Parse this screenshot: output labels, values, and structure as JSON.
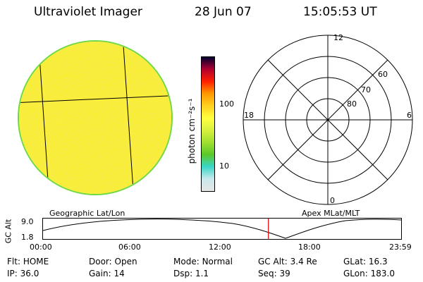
{
  "header": {
    "title": "Ultraviolet Imager",
    "date": "28 Jun 07",
    "time": "15:05:53 UT"
  },
  "colorbar": {
    "label": "photon cm⁻²s⁻¹",
    "ticks": [
      "100",
      "10"
    ],
    "colors": [
      "#e6e6e6",
      "#c8e8ec",
      "#3ad6c8",
      "#5ac828",
      "#a0e030",
      "#d8f040",
      "#ffff40",
      "#ffd020",
      "#ff9900",
      "#ff2000",
      "#b00030",
      "#000030"
    ]
  },
  "disk": {
    "fill_color": "#f7f230",
    "rim_color": "#70d840"
  },
  "polar": {
    "mlt_labels": {
      "top": "12",
      "left": "18",
      "right": "6",
      "bottom": "0"
    },
    "lat_labels": [
      "60",
      "70",
      "80"
    ]
  },
  "timeline": {
    "label_left": "Geographic Lat/Lon",
    "label_right": "Apex MLat/MLT",
    "y_axis_label": "GC Alt",
    "y_ticks": [
      "9.0",
      "1.8"
    ],
    "x_ticks": [
      "00:00",
      "06:00",
      "12:00",
      "18:00",
      "23:59"
    ],
    "current_time_hours": 15.1
  },
  "info": {
    "row1": [
      {
        "label": "Flt:",
        "value": "HOME"
      },
      {
        "label": "Door:",
        "value": "Open"
      },
      {
        "label": "Mode:",
        "value": "Normal"
      },
      {
        "label": "GC Alt:",
        "value": "3.4 Re"
      },
      {
        "label": "GLat:",
        "value": "16.3"
      }
    ],
    "row2": [
      {
        "label": "IP:",
        "value": "36.0"
      },
      {
        "label": "Gain:",
        "value": "14"
      },
      {
        "label": "Dsp:",
        "value": "1.1"
      },
      {
        "label": "Seq:",
        "value": "39"
      },
      {
        "label": "GLon:",
        "value": "183.0"
      }
    ]
  }
}
